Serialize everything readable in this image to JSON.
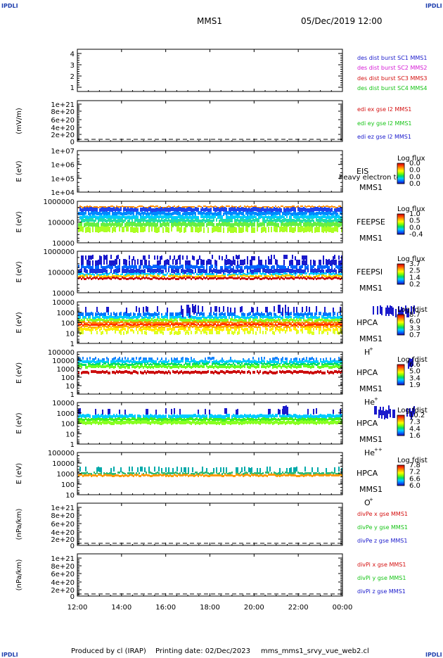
{
  "header": {
    "corner_label": "IPDLI",
    "spacecraft": "MMS1",
    "date_time": "05/Dec/2019 12:00"
  },
  "footer": {
    "produced_by": "Produced by cl (IRAP)",
    "printing_date": "Printing date: 02/Dec/2023",
    "script_name": "mms_mms1_srvy_vue_web2.cl"
  },
  "x_axis": {
    "ticks": [
      "12:00",
      "14:00",
      "16:00",
      "18:00",
      "20:00",
      "22:00",
      "00:00"
    ]
  },
  "panels": [
    {
      "id": "des-dist",
      "type": "line",
      "ylabel": "",
      "ticks": [
        "4",
        "3",
        "2",
        "1"
      ],
      "legend": [
        {
          "text": "des dist burst SC1 MMS1",
          "color": "#1a1acc"
        },
        {
          "text": "des dist burst SC2 MMS2",
          "color": "#d61ad6"
        },
        {
          "text": "des dist burst SC3 MMS3",
          "color": "#d41010"
        },
        {
          "text": "des dist burst SC4 MMS4",
          "color": "#16c416"
        }
      ]
    },
    {
      "id": "edi-e",
      "type": "line",
      "ylabel": "(mV/m)",
      "ticks": [
        "1e+21",
        "8e+20",
        "6e+20",
        "4e+20",
        "2e+20",
        "0"
      ],
      "legend": [
        {
          "text": "edi ex gse l2 MMS1",
          "color": "#d41010"
        },
        {
          "text": "edi ey gse l2 MMS1",
          "color": "#16c416"
        },
        {
          "text": "edi ez gse l2 MMS1",
          "color": "#1a1acc"
        }
      ]
    },
    {
      "id": "eis",
      "type": "spectrogram",
      "ylabel": "E (eV)",
      "ticks": [
        "1e+07",
        "1e+06",
        "1e+05",
        "1e+04"
      ],
      "instrument": "EIS",
      "sc": "MMS1",
      "note": "heavy electron to",
      "cb_title": "Log flux",
      "cb_ticks": [
        "0.0",
        "0.0",
        "0.0",
        "0.0"
      ]
    },
    {
      "id": "feepse",
      "type": "spectrogram",
      "ylabel": "E (eV)",
      "ticks": [
        "1000000",
        "100000",
        "10000"
      ],
      "instrument": "FEEPSE",
      "sc": "MMS1",
      "cb_title": "Log flux",
      "cb_ticks": [
        "1.0",
        "0.5",
        "0.0",
        "-0.4"
      ]
    },
    {
      "id": "feepsi",
      "type": "spectrogram",
      "ylabel": "E (eV)",
      "ticks": [
        "1000000",
        "100000",
        "10000"
      ],
      "instrument": "FEEPSI",
      "sc": "MMS1",
      "cb_title": "Log flux",
      "cb_ticks": [
        "3.7",
        "2.5",
        "1.4",
        "0.2"
      ]
    },
    {
      "id": "hpca-h",
      "type": "spectrogram",
      "ylabel": "E (eV)",
      "ticks": [
        "10000",
        "1000",
        "100",
        "10",
        "1"
      ],
      "instrument": "HPCA",
      "sc": "MMS1",
      "species": "H",
      "charge": "+",
      "cb_title": "Log fdist",
      "cb_ticks": [
        "8.7",
        "6.0",
        "3.3",
        "0.7"
      ]
    },
    {
      "id": "hpca-he",
      "type": "spectrogram",
      "ylabel": "E (eV)",
      "ticks": [
        "100000",
        "10000",
        "1000",
        "100",
        "10",
        "1"
      ],
      "instrument": "HPCA",
      "sc": "MMS1",
      "species": "He",
      "charge": "+",
      "cb_title": "Log fdist",
      "cb_ticks": [
        "6.6",
        "5.0",
        "3.4",
        "1.9"
      ]
    },
    {
      "id": "hpca-he2",
      "type": "spectrogram",
      "ylabel": "E (eV)",
      "ticks": [
        "10000",
        "1000",
        "100",
        "10",
        "1"
      ],
      "instrument": "HPCA",
      "sc": "MMS1",
      "species": "He",
      "charge": "++",
      "cb_title": "Log fdist",
      "cb_ticks": [
        "10.2",
        "7.3",
        "4.4",
        "1.6"
      ]
    },
    {
      "id": "hpca-o",
      "type": "spectrogram",
      "ylabel": "E (eV)",
      "ticks": [
        "100000",
        "10000",
        "1000",
        "100",
        "10"
      ],
      "instrument": "HPCA",
      "sc": "MMS1",
      "species": "O",
      "charge": "+",
      "cb_title": "Log fdist",
      "cb_ticks": [
        "7.8",
        "7.2",
        "6.6",
        "6.0"
      ]
    },
    {
      "id": "divpe",
      "type": "line",
      "ylabel": "(nPa/km)",
      "ticks": [
        "1e+21",
        "8e+20",
        "6e+20",
        "4e+20",
        "2e+20",
        "0"
      ],
      "legend": [
        {
          "text": "divPe x gse MMS1",
          "color": "#d41010"
        },
        {
          "text": "divPe y gse MMS1",
          "color": "#16c416"
        },
        {
          "text": "divPe z gse MMS1",
          "color": "#1a1acc"
        }
      ]
    },
    {
      "id": "divpi",
      "type": "line",
      "ylabel": "(nPa/km)",
      "ticks": [
        "1e+21",
        "8e+20",
        "6e+20",
        "4e+20",
        "2e+20",
        "0"
      ],
      "legend": [
        {
          "text": "divPi x gse MMS1",
          "color": "#d41010"
        },
        {
          "text": "divPi y gse MMS1",
          "color": "#16c416"
        },
        {
          "text": "divPi z gse MMS1",
          "color": "#1a1acc"
        }
      ]
    }
  ],
  "chart_data": {
    "type": "heatmap",
    "title": "MMS1",
    "x": [
      "12:00",
      "14:00",
      "16:00",
      "18:00",
      "20:00",
      "22:00",
      "00:00"
    ],
    "series": [
      {
        "name": "FEEPSE",
        "energy_range_eV": [
          30000,
          600000
        ],
        "log_flux_range": [
          -0.4,
          1.0
        ]
      },
      {
        "name": "FEEPSI",
        "energy_range_eV": [
          60000,
          600000
        ],
        "log_flux_range": [
          0.2,
          3.7
        ]
      },
      {
        "name": "HPCA H+",
        "energy_range_eV": [
          3,
          30000
        ],
        "log_fdist_range": [
          0.7,
          8.7
        ]
      },
      {
        "name": "HPCA He+",
        "energy_range_eV": [
          300,
          10000
        ],
        "log_fdist_range": [
          1.9,
          6.6
        ]
      },
      {
        "name": "HPCA He++",
        "energy_range_eV": [
          300,
          8000
        ],
        "log_fdist_range": [
          1.6,
          10.2
        ]
      },
      {
        "name": "HPCA O+",
        "energy_range_eV": [
          300,
          1000
        ],
        "log_fdist_range": [
          6.0,
          7.8
        ]
      }
    ]
  }
}
